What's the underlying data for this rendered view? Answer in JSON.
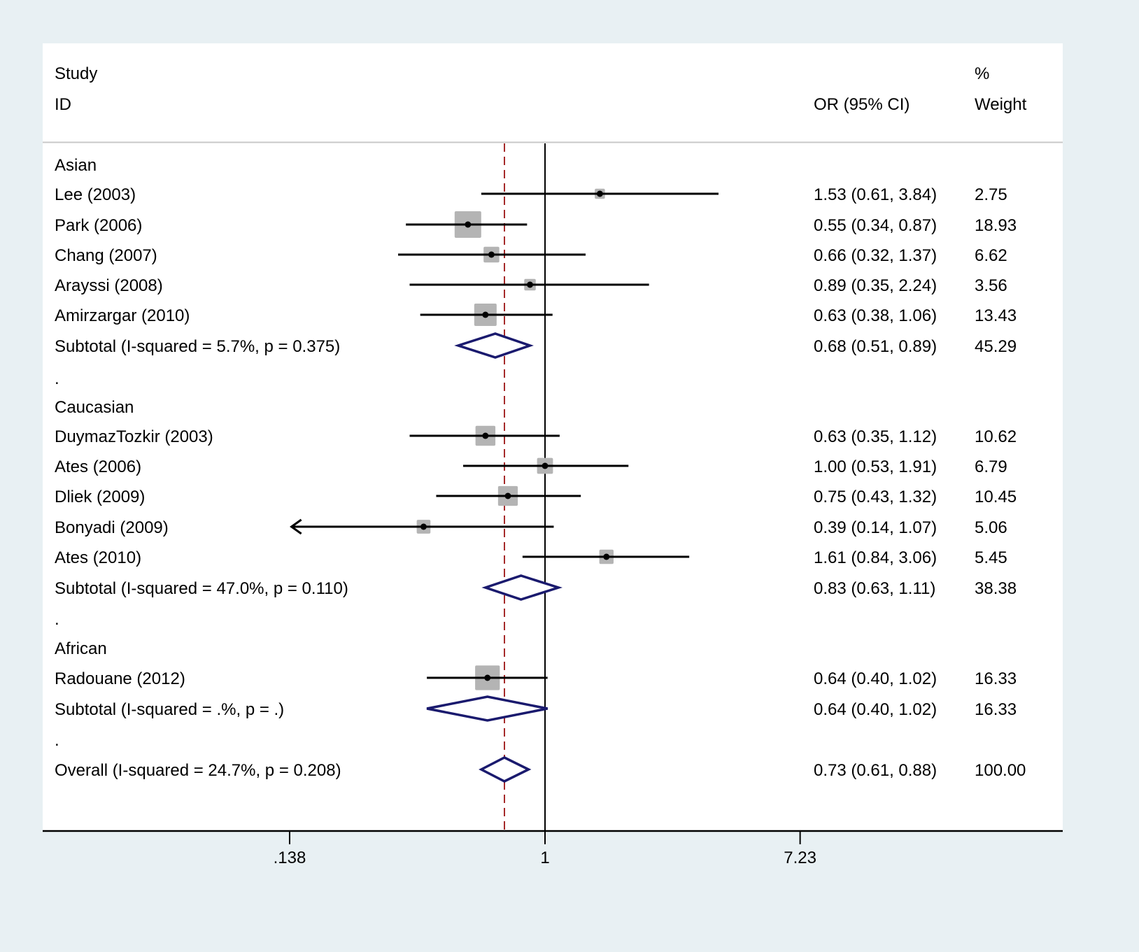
{
  "chart_data": {
    "type": "forest",
    "scale": "log",
    "effect_measure": "OR",
    "header": {
      "col_study_line1": "Study",
      "col_study_line2": "ID",
      "col_or": "OR (95% CI)",
      "col_weight_line1": "%",
      "col_weight_line2": "Weight"
    },
    "x_ticks": [
      {
        "value": 0.138,
        "label": ".138"
      },
      {
        "value": 1,
        "label": "1"
      },
      {
        "value": 7.23,
        "label": "7.23"
      }
    ],
    "xlim": [
      0.138,
      7.23
    ],
    "null_line": 1,
    "overall_line": 0.73,
    "colors": {
      "background": "#e8f0f3",
      "panel": "#ffffff",
      "box": "#b4b4b4",
      "diamond": "#1a1a6e",
      "overall_line": "#a52a2a",
      "ci_line": "#000000"
    },
    "rows": [
      {
        "kind": "group",
        "label": "Asian"
      },
      {
        "kind": "study",
        "label": "Lee (2003)",
        "or": 1.53,
        "lo": 0.61,
        "hi": 3.84,
        "text": "1.53 (0.61, 3.84)",
        "weight": 2.75,
        "weight_text": "2.75"
      },
      {
        "kind": "study",
        "label": "Park (2006)",
        "or": 0.55,
        "lo": 0.34,
        "hi": 0.87,
        "text": "0.55 (0.34, 0.87)",
        "weight": 18.93,
        "weight_text": "18.93"
      },
      {
        "kind": "study",
        "label": "Chang (2007)",
        "or": 0.66,
        "lo": 0.32,
        "hi": 1.37,
        "text": "0.66 (0.32, 1.37)",
        "weight": 6.62,
        "weight_text": "6.62"
      },
      {
        "kind": "study",
        "label": "Arayssi (2008)",
        "or": 0.89,
        "lo": 0.35,
        "hi": 2.24,
        "text": "0.89 (0.35, 2.24)",
        "weight": 3.56,
        "weight_text": "3.56"
      },
      {
        "kind": "study",
        "label": "Amirzargar (2010)",
        "or": 0.63,
        "lo": 0.38,
        "hi": 1.06,
        "text": "0.63 (0.38, 1.06)",
        "weight": 13.43,
        "weight_text": "13.43"
      },
      {
        "kind": "subtotal",
        "label": "Subtotal  (I-squared = 5.7%, p = 0.375)",
        "or": 0.68,
        "lo": 0.51,
        "hi": 0.89,
        "text": "0.68 (0.51, 0.89)",
        "weight": 45.29,
        "weight_text": "45.29"
      },
      {
        "kind": "spacer",
        "label": "."
      },
      {
        "kind": "group",
        "label": "Caucasian"
      },
      {
        "kind": "study",
        "label": "DuymazTozkir (2003)",
        "or": 0.63,
        "lo": 0.35,
        "hi": 1.12,
        "text": "0.63 (0.35, 1.12)",
        "weight": 10.62,
        "weight_text": "10.62"
      },
      {
        "kind": "study",
        "label": "Ates (2006)",
        "or": 1.0,
        "lo": 0.53,
        "hi": 1.91,
        "text": "1.00 (0.53, 1.91)",
        "weight": 6.79,
        "weight_text": "6.79"
      },
      {
        "kind": "study",
        "label": "Dliek (2009)",
        "or": 0.75,
        "lo": 0.43,
        "hi": 1.32,
        "text": "0.75 (0.43, 1.32)",
        "weight": 10.45,
        "weight_text": "10.45"
      },
      {
        "kind": "study",
        "label": "Bonyadi (2009)",
        "or": 0.39,
        "lo": 0.14,
        "hi": 1.07,
        "text": "0.39 (0.14, 1.07)",
        "weight": 5.06,
        "weight_text": "5.06",
        "arrow_left": true
      },
      {
        "kind": "study",
        "label": "Ates (2010)",
        "or": 1.61,
        "lo": 0.84,
        "hi": 3.06,
        "text": "1.61 (0.84, 3.06)",
        "weight": 5.45,
        "weight_text": "5.45"
      },
      {
        "kind": "subtotal",
        "label": "Subtotal  (I-squared = 47.0%, p = 0.110)",
        "or": 0.83,
        "lo": 0.63,
        "hi": 1.11,
        "text": "0.83 (0.63, 1.11)",
        "weight": 38.38,
        "weight_text": "38.38"
      },
      {
        "kind": "spacer",
        "label": "."
      },
      {
        "kind": "group",
        "label": "African"
      },
      {
        "kind": "study",
        "label": "Radouane (2012)",
        "or": 0.64,
        "lo": 0.4,
        "hi": 1.02,
        "text": "0.64 (0.40, 1.02)",
        "weight": 16.33,
        "weight_text": "16.33"
      },
      {
        "kind": "subtotal",
        "label": "Subtotal  (I-squared = .%, p = .)",
        "or": 0.64,
        "lo": 0.4,
        "hi": 1.02,
        "text": "0.64 (0.40, 1.02)",
        "weight": 16.33,
        "weight_text": "16.33"
      },
      {
        "kind": "spacer",
        "label": "."
      },
      {
        "kind": "overall",
        "label": "Overall  (I-squared = 24.7%, p = 0.208)",
        "or": 0.73,
        "lo": 0.61,
        "hi": 0.88,
        "text": "0.73 (0.61, 0.88)",
        "weight": 100.0,
        "weight_text": "100.00"
      }
    ]
  }
}
